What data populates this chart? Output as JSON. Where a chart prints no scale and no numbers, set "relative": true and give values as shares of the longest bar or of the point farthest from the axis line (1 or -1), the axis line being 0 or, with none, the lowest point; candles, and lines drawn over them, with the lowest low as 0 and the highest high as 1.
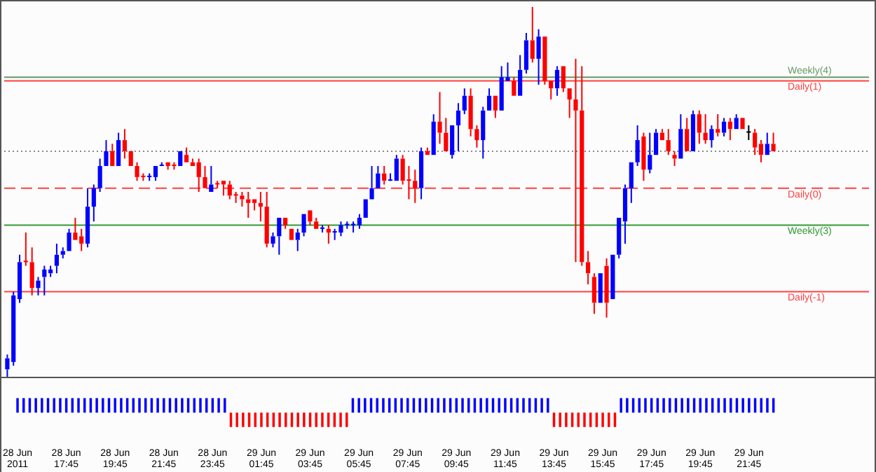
{
  "chart_data": [
    {
      "type": "candlestick",
      "relative": true,
      "grid": false,
      "legend": false,
      "tick_labels": false,
      "categories": [
        null,
        null,
        null,
        null,
        null,
        null,
        null,
        null,
        null,
        null,
        null,
        null,
        null,
        null,
        null,
        null,
        null,
        null,
        null,
        null,
        null,
        null,
        null,
        null,
        null,
        null,
        null,
        null,
        null,
        null,
        null,
        null,
        null,
        null,
        null,
        null,
        null,
        null,
        null,
        null,
        null,
        null,
        null,
        null,
        null,
        null,
        null,
        null,
        null,
        null,
        null,
        null,
        null,
        null,
        null,
        null,
        null,
        null,
        null,
        null,
        null,
        null,
        null,
        null,
        null,
        null,
        null,
        null,
        null,
        null,
        null,
        null,
        null,
        null,
        null,
        null,
        null,
        null,
        null,
        null,
        null,
        null,
        null,
        null,
        null,
        null,
        null,
        null,
        null,
        null,
        null,
        null,
        null,
        null,
        null,
        null,
        null,
        null,
        null,
        null,
        null,
        null,
        null,
        null,
        null,
        null,
        null,
        null,
        null,
        null,
        null,
        null,
        null,
        null,
        null,
        null,
        null,
        null,
        null,
        null,
        null,
        null,
        null,
        null,
        null
      ],
      "ohlc": [
        [
          0.02,
          0.06,
          0,
          0.05
        ],
        [
          0.04,
          0.23,
          0.03,
          0.22
        ],
        [
          0.21,
          0.33,
          0.2,
          0.31
        ],
        [
          0.31,
          0.39,
          0.3,
          0.31
        ],
        [
          0.31,
          0.35,
          0.22,
          0.24
        ],
        [
          0.24,
          0.27,
          0.22,
          0.26
        ],
        [
          0.27,
          0.3,
          0.22,
          0.29
        ],
        [
          0.28,
          0.3,
          0.27,
          0.29
        ],
        [
          0.3,
          0.36,
          0.28,
          0.33
        ],
        [
          0.33,
          0.35,
          0.32,
          0.34
        ],
        [
          0.34,
          0.4,
          0.34,
          0.39
        ],
        [
          0.39,
          0.43,
          0.37,
          0.37
        ],
        [
          0.38,
          0.4,
          0.34,
          0.36
        ],
        [
          0.36,
          0.51,
          0.35,
          0.46
        ],
        [
          0.46,
          0.52,
          0.42,
          0.51
        ],
        [
          0.51,
          0.59,
          0.5,
          0.57
        ],
        [
          0.57,
          0.64,
          0.57,
          0.61
        ],
        [
          0.61,
          0.63,
          0.57,
          0.57
        ],
        [
          0.57,
          0.66,
          0.57,
          0.64
        ],
        [
          0.64,
          0.67,
          0.59,
          0.61
        ],
        [
          0.61,
          0.61,
          0.57,
          0.57
        ],
        [
          0.57,
          0.58,
          0.53,
          0.54
        ],
        [
          0.54,
          0.55,
          0.53,
          0.54
        ],
        [
          0.54,
          0.55,
          0.53,
          0.54
        ],
        [
          0.54,
          0.57,
          0.53,
          0.57
        ],
        [
          0.57,
          0.58,
          0.57,
          0.57
        ],
        [
          0.58,
          0.58,
          0.56,
          0.57
        ],
        [
          0.57,
          0.58,
          0.56,
          0.57
        ],
        [
          0.57,
          0.61,
          0.57,
          0.61
        ],
        [
          0.6,
          0.62,
          0.58,
          0.58
        ],
        [
          0.58,
          0.59,
          0.57,
          0.57
        ],
        [
          0.58,
          0.59,
          0.5,
          0.54
        ],
        [
          0.54,
          0.57,
          0.51,
          0.51
        ],
        [
          0.5,
          0.57,
          0.5,
          0.52
        ],
        [
          0.52,
          0.53,
          0.51,
          0.52
        ],
        [
          0.53,
          0.53,
          0.49,
          0.52
        ],
        [
          0.52,
          0.53,
          0.48,
          0.49
        ],
        [
          0.49,
          0.5,
          0.47,
          0.49
        ],
        [
          0.49,
          0.5,
          0.46,
          0.48
        ],
        [
          0.48,
          0.5,
          0.43,
          0.47
        ],
        [
          0.48,
          0.48,
          0.45,
          0.47
        ],
        [
          0.47,
          0.5,
          0.42,
          0.46
        ],
        [
          0.46,
          0.5,
          0.35,
          0.36
        ],
        [
          0.36,
          0.39,
          0.35,
          0.38
        ],
        [
          0.38,
          0.43,
          0.33,
          0.43
        ],
        [
          0.43,
          0.43,
          0.4,
          0.41
        ],
        [
          0.4,
          0.4,
          0.37,
          0.37
        ],
        [
          0.37,
          0.4,
          0.34,
          0.39
        ],
        [
          0.39,
          0.44,
          0.38,
          0.44
        ],
        [
          0.45,
          0.45,
          0.41,
          0.42
        ],
        [
          0.42,
          0.43,
          0.4,
          0.4
        ],
        [
          0.4,
          0.41,
          0.39,
          0.4
        ],
        [
          0.4,
          0.41,
          0.36,
          0.39
        ],
        [
          0.39,
          0.4,
          0.37,
          0.39
        ],
        [
          0.39,
          0.42,
          0.38,
          0.41
        ],
        [
          0.41,
          0.42,
          0.4,
          0.41
        ],
        [
          0.41,
          0.42,
          0.39,
          0.41
        ],
        [
          0.41,
          0.44,
          0.4,
          0.43
        ],
        [
          0.43,
          0.48,
          0.43,
          0.48
        ],
        [
          0.48,
          0.57,
          0.48,
          0.51
        ],
        [
          0.51,
          0.57,
          0.51,
          0.55
        ],
        [
          0.55,
          0.57,
          0.52,
          0.53
        ],
        [
          0.53,
          0.55,
          0.53,
          0.53
        ],
        [
          0.53,
          0.6,
          0.53,
          0.59
        ],
        [
          0.59,
          0.6,
          0.52,
          0.53
        ],
        [
          0.53,
          0.57,
          0.48,
          0.53
        ],
        [
          0.53,
          0.56,
          0.47,
          0.51
        ],
        [
          0.51,
          0.62,
          0.48,
          0.61
        ],
        [
          0.61,
          0.62,
          0.6,
          0.6
        ],
        [
          0.6,
          0.71,
          0.6,
          0.69
        ],
        [
          0.69,
          0.77,
          0.63,
          0.66
        ],
        [
          0.66,
          0.7,
          0.61,
          0.61
        ],
        [
          0.6,
          0.68,
          0.59,
          0.68
        ],
        [
          0.68,
          0.74,
          0.61,
          0.72
        ],
        [
          0.72,
          0.78,
          0.71,
          0.76
        ],
        [
          0.76,
          0.78,
          0.65,
          0.67
        ],
        [
          0.67,
          0.68,
          0.62,
          0.64
        ],
        [
          0.64,
          0.73,
          0.59,
          0.72
        ],
        [
          0.72,
          0.78,
          0.72,
          0.76
        ],
        [
          0.76,
          0.76,
          0.7,
          0.72
        ],
        [
          0.72,
          0.84,
          0.72,
          0.81
        ],
        [
          0.8,
          0.85,
          0.8,
          0.81
        ],
        [
          0.8,
          0.81,
          0.76,
          0.76
        ],
        [
          0.76,
          0.87,
          0.76,
          0.83
        ],
        [
          0.83,
          0.93,
          0.82,
          0.91
        ],
        [
          0.91,
          1,
          0.85,
          0.86
        ],
        [
          0.86,
          0.94,
          0.79,
          0.92
        ],
        [
          0.92,
          0.92,
          0.79,
          0.8
        ],
        [
          0.8,
          0.8,
          0.75,
          0.78
        ],
        [
          0.78,
          0.84,
          0.76,
          0.83
        ],
        [
          0.84,
          0.84,
          0.77,
          0.78
        ],
        [
          0.78,
          0.78,
          0.7,
          0.75
        ],
        [
          0.75,
          0.86,
          0.31,
          0.72
        ],
        [
          0.72,
          0.84,
          0.3,
          0.31
        ],
        [
          0.31,
          0.34,
          0.25,
          0.28
        ],
        [
          0.27,
          0.28,
          0.17,
          0.2
        ],
        [
          0.2,
          0.28,
          0.2,
          0.28
        ],
        [
          0.3,
          0.32,
          0.16,
          0.2
        ],
        [
          0.21,
          0.33,
          0.21,
          0.33
        ],
        [
          0.33,
          0.43,
          0.32,
          0.43
        ],
        [
          0.42,
          0.52,
          0.36,
          0.51
        ],
        [
          0.51,
          0.58,
          0.47,
          0.58
        ],
        [
          0.58,
          0.68,
          0.57,
          0.64
        ],
        [
          0.65,
          0.66,
          0.53,
          0.56
        ],
        [
          0.56,
          0.66,
          0.55,
          0.6
        ],
        [
          0.6,
          0.67,
          0.6,
          0.66
        ],
        [
          0.66,
          0.67,
          0.64,
          0.64
        ],
        [
          0.64,
          0.67,
          0.6,
          0.61
        ],
        [
          0.6,
          0.61,
          0.57,
          0.59
        ],
        [
          0.59,
          0.71,
          0.59,
          0.67
        ],
        [
          0.67,
          0.7,
          0.61,
          0.61
        ],
        [
          0.61,
          0.72,
          0.61,
          0.71
        ],
        [
          0.71,
          0.72,
          0.63,
          0.66
        ],
        [
          0.66,
          0.71,
          0.63,
          0.64
        ],
        [
          0.64,
          0.68,
          0.62,
          0.67
        ],
        [
          0.67,
          0.71,
          0.65,
          0.66
        ],
        [
          0.66,
          0.7,
          0.65,
          0.69
        ],
        [
          0.69,
          0.7,
          0.64,
          0.67
        ],
        [
          0.67,
          0.71,
          0.67,
          0.7
        ],
        [
          0.7,
          0.7,
          0.67,
          0.67
        ],
        [
          0.66,
          0.68,
          0.64,
          0.66
        ],
        [
          0.66,
          0.67,
          0.6,
          0.62
        ],
        [
          0.63,
          0.64,
          0.58,
          0.6
        ],
        [
          0.6,
          0.66,
          0.6,
          0.63
        ],
        [
          0.63,
          0.66,
          0.61,
          0.61
        ]
      ],
      "colors": [
        "#0000ff",
        "#0000ff",
        "#0000ff",
        "#ff0000",
        "#ff0000",
        "#0000ff",
        "#0000ff",
        "#0000ff",
        "#0000ff",
        "#0000ff",
        "#0000ff",
        "#ff0000",
        "#ff0000",
        "#0000ff",
        "#0000ff",
        "#0000ff",
        "#0000ff",
        "#ff0000",
        "#0000ff",
        "#ff0000",
        "#ff0000",
        "#ff0000",
        "#ff0000",
        "#0000ff",
        "#0000ff",
        "#0000ff",
        "#ff0000",
        "#ff0000",
        "#0000ff",
        "#ff0000",
        "#ff0000",
        "#ff0000",
        "#ff0000",
        "#0000ff",
        "#ff0000",
        "#ff0000",
        "#ff0000",
        "#ff0000",
        "#ff0000",
        "#ff0000",
        "#ff0000",
        "#ff0000",
        "#ff0000",
        "#0000ff",
        "#0000ff",
        "#ff0000",
        "#ff0000",
        "#0000ff",
        "#0000ff",
        "#ff0000",
        "#ff0000",
        "#0000ff",
        "#ff0000",
        "#0000ff",
        "#0000ff",
        "#0000ff",
        "#0000ff",
        "#0000ff",
        "#0000ff",
        "#0000ff",
        "#0000ff",
        "#ff0000",
        "#0000ff",
        "#0000ff",
        "#ff0000",
        "#ff0000",
        "#ff0000",
        "#0000ff",
        "#ff0000",
        "#0000ff",
        "#ff0000",
        "#ff0000",
        "#0000ff",
        "#0000ff",
        "#0000ff",
        "#ff0000",
        "#ff0000",
        "#0000ff",
        "#0000ff",
        "#ff0000",
        "#0000ff",
        "#0000ff",
        "#ff0000",
        "#0000ff",
        "#0000ff",
        "#ff0000",
        "#0000ff",
        "#ff0000",
        "#ff0000",
        "#0000ff",
        "#ff0000",
        "#ff0000",
        "#ff0000",
        "#ff0000",
        "#ff0000",
        "#ff0000",
        "#0000ff",
        "#ff0000",
        "#0000ff",
        "#0000ff",
        "#0000ff",
        "#0000ff",
        "#0000ff",
        "#ff0000",
        "#0000ff",
        "#0000ff",
        "#ff0000",
        "#ff0000",
        "#ff0000",
        "#0000ff",
        "#ff0000",
        "#0000ff",
        "#ff0000",
        "#ff0000",
        "#0000ff",
        "#ff0000",
        "#0000ff",
        "#ff0000",
        "#0000ff",
        "#ff0000",
        "#000000",
        "#ff0000",
        "#ff0000",
        "#0000ff",
        "#ff0000"
      ],
      "ref_lines": [
        {
          "axis": "y",
          "value": 0.81,
          "label": "Weekly(4)",
          "color": "#669966",
          "line_style": "solid"
        },
        {
          "axis": "y",
          "value": 0.8,
          "label": "Daily(1)",
          "color": "#ff4040",
          "line_style": "solid"
        },
        {
          "axis": "y",
          "value": 0.61,
          "color": "#888888",
          "line_style": "dotted"
        },
        {
          "axis": "y",
          "value": 0.51,
          "label": "Daily(0)",
          "color": "#ff4040",
          "line_style": "dashed"
        },
        {
          "axis": "y",
          "value": 0.41,
          "label": "Weekly(3)",
          "color": "#339933",
          "line_style": "solid"
        },
        {
          "axis": "y",
          "value": 0.23,
          "label": "Daily(-1)",
          "color": "#ff4040",
          "line_style": "solid"
        }
      ]
    },
    {
      "type": "bar",
      "relative": true,
      "grid": false,
      "legend": false,
      "tick_labels": "x",
      "categories": [
        "28 Jun 2011",
        null,
        null,
        null,
        null,
        null,
        null,
        null,
        "28 Jun 17:45",
        null,
        null,
        null,
        null,
        null,
        null,
        null,
        "28 Jun 19:45",
        null,
        null,
        null,
        null,
        null,
        null,
        null,
        "28 Jun 21:45",
        null,
        null,
        null,
        null,
        null,
        null,
        null,
        "28 Jun 23:45",
        null,
        null,
        null,
        null,
        null,
        null,
        null,
        "29 Jun 01:45",
        null,
        null,
        null,
        null,
        null,
        null,
        null,
        "29 Jun 03:45",
        null,
        null,
        null,
        null,
        null,
        null,
        null,
        "29 Jun 05:45",
        null,
        null,
        null,
        null,
        null,
        null,
        null,
        "29 Jun 07:45",
        null,
        null,
        null,
        null,
        null,
        null,
        null,
        "29 Jun 09:45",
        null,
        null,
        null,
        null,
        null,
        null,
        null,
        "29 Jun 11:45",
        null,
        null,
        null,
        null,
        null,
        null,
        null,
        "29 Jun 13:45",
        null,
        null,
        null,
        null,
        null,
        null,
        null,
        "29 Jun 15:45",
        null,
        null,
        null,
        null,
        null,
        null,
        null,
        "29 Jun 17:45",
        null,
        null,
        null,
        null,
        null,
        null,
        null,
        "29 Jun 19:45",
        null,
        null,
        null,
        null,
        null,
        null,
        null,
        "29 Jun 21:45",
        null,
        null,
        null,
        null
      ],
      "values": [
        1,
        1,
        1,
        1,
        1,
        1,
        1,
        1,
        1,
        1,
        1,
        1,
        1,
        1,
        1,
        1,
        1,
        1,
        1,
        1,
        1,
        1,
        1,
        1,
        1,
        1,
        1,
        1,
        1,
        1,
        1,
        1,
        1,
        1,
        1,
        -1,
        -1,
        -1,
        -1,
        -1,
        -1,
        -1,
        -1,
        -1,
        -1,
        -1,
        -1,
        -1,
        -1,
        -1,
        -1,
        -1,
        -1,
        -1,
        -1,
        1,
        1,
        1,
        1,
        1,
        1,
        1,
        1,
        1,
        1,
        1,
        1,
        1,
        1,
        1,
        1,
        1,
        1,
        1,
        1,
        1,
        1,
        1,
        1,
        1,
        1,
        1,
        1,
        1,
        1,
        1,
        1,
        1,
        -1,
        -1,
        -1,
        -1,
        -1,
        -1,
        -1,
        -1,
        -1,
        -1,
        -1,
        1,
        1,
        1,
        1,
        1,
        1,
        1,
        1,
        1,
        1,
        1,
        1,
        1,
        1,
        1,
        1,
        1,
        1,
        1,
        1,
        1,
        1,
        1,
        1,
        1,
        1
      ],
      "colors": [
        "#0000ff",
        "#0000ff",
        "#0000ff",
        "#0000ff",
        "#0000ff",
        "#0000ff",
        "#0000ff",
        "#0000ff",
        "#0000ff",
        "#0000ff",
        "#0000ff",
        "#0000ff",
        "#0000ff",
        "#0000ff",
        "#0000ff",
        "#0000ff",
        "#0000ff",
        "#0000ff",
        "#0000ff",
        "#0000ff",
        "#0000ff",
        "#0000ff",
        "#0000ff",
        "#0000ff",
        "#0000ff",
        "#0000ff",
        "#0000ff",
        "#0000ff",
        "#0000ff",
        "#0000ff",
        "#0000ff",
        "#0000ff",
        "#0000ff",
        "#0000ff",
        "#0000ff",
        "#ff0000",
        "#ff0000",
        "#ff0000",
        "#ff0000",
        "#ff0000",
        "#ff0000",
        "#ff0000",
        "#ff0000",
        "#ff0000",
        "#ff0000",
        "#ff0000",
        "#ff0000",
        "#ff0000",
        "#ff0000",
        "#ff0000",
        "#ff0000",
        "#ff0000",
        "#ff0000",
        "#ff0000",
        "#ff0000",
        "#0000ff",
        "#0000ff",
        "#0000ff",
        "#0000ff",
        "#0000ff",
        "#0000ff",
        "#0000ff",
        "#0000ff",
        "#0000ff",
        "#0000ff",
        "#0000ff",
        "#0000ff",
        "#0000ff",
        "#0000ff",
        "#0000ff",
        "#0000ff",
        "#0000ff",
        "#0000ff",
        "#0000ff",
        "#0000ff",
        "#0000ff",
        "#0000ff",
        "#0000ff",
        "#0000ff",
        "#0000ff",
        "#0000ff",
        "#0000ff",
        "#0000ff",
        "#0000ff",
        "#0000ff",
        "#0000ff",
        "#0000ff",
        "#0000ff",
        "#ff0000",
        "#ff0000",
        "#ff0000",
        "#ff0000",
        "#ff0000",
        "#ff0000",
        "#ff0000",
        "#ff0000",
        "#ff0000",
        "#ff0000",
        "#ff0000",
        "#0000ff",
        "#0000ff",
        "#0000ff",
        "#0000ff",
        "#0000ff",
        "#0000ff",
        "#0000ff",
        "#0000ff",
        "#0000ff",
        "#0000ff",
        "#0000ff",
        "#0000ff",
        "#0000ff",
        "#0000ff",
        "#0000ff",
        "#0000ff",
        "#0000ff",
        "#0000ff",
        "#0000ff",
        "#0000ff",
        "#0000ff",
        "#0000ff",
        "#0000ff",
        "#0000ff",
        "#0000ff",
        "#0000ff"
      ]
    }
  ]
}
